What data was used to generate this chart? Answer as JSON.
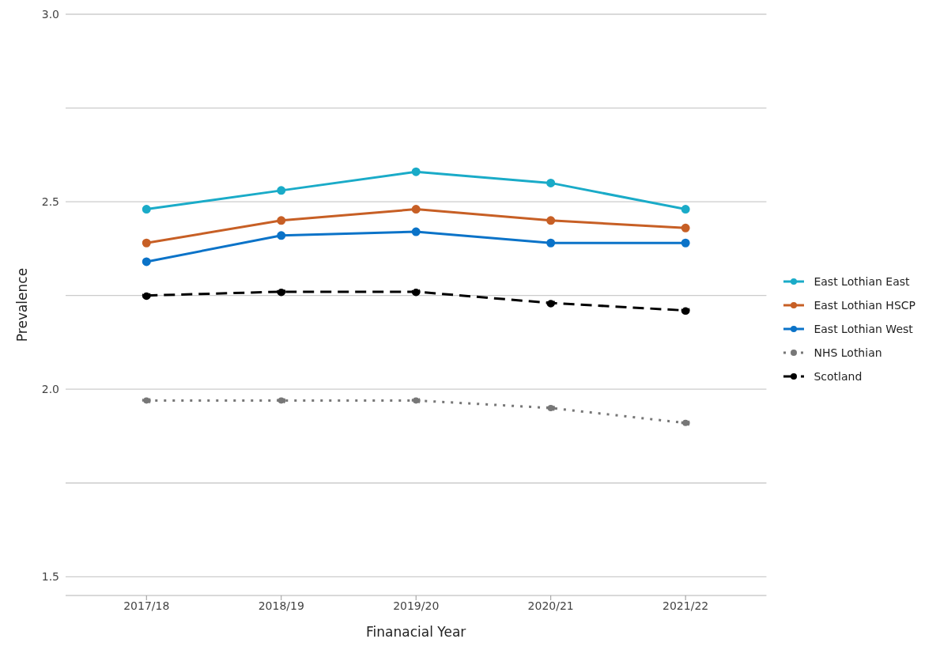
{
  "chart_data": {
    "type": "line",
    "xlabel": "Finanacial Year",
    "ylabel": "Prevalence",
    "categories": [
      "2017/18",
      "2018/19",
      "2019/20",
      "2020/21",
      "2021/22"
    ],
    "series": [
      {
        "name": "East Lothian East",
        "color": "#1aabc8",
        "values": [
          2.48,
          2.53,
          2.58,
          2.55,
          2.48
        ]
      },
      {
        "name": "East Lothian HSCP",
        "color": "#c75f25",
        "values": [
          2.39,
          2.45,
          2.48,
          2.45,
          2.43
        ]
      },
      {
        "name": "East Lothian West",
        "color": "#0b73c8",
        "values": [
          2.34,
          2.41,
          2.42,
          2.39,
          2.39
        ]
      },
      {
        "name": "NHS Lothian",
        "color": "#777777",
        "line_style": "dotted",
        "values": [
          1.97,
          1.97,
          1.97,
          1.95,
          1.91
        ]
      },
      {
        "name": "Scotland",
        "color": "#000000",
        "line_style": "dashed",
        "values": [
          2.25,
          2.26,
          2.26,
          2.23,
          2.21
        ]
      }
    ],
    "ylim": [
      1.45,
      3.0
    ],
    "yticks": [
      1.5,
      {
        "value": 1.75,
        "label": null
      },
      {
        "value": 2,
        "label": "2.0"
      },
      {
        "value": 2.25,
        "label": null
      },
      2.5,
      {
        "value": 2.75,
        "label": null
      },
      {
        "value": 3,
        "label": "3.0"
      }
    ],
    "grid": "y",
    "legend": "right",
    "marker": "circle",
    "line_style": "solid"
  }
}
